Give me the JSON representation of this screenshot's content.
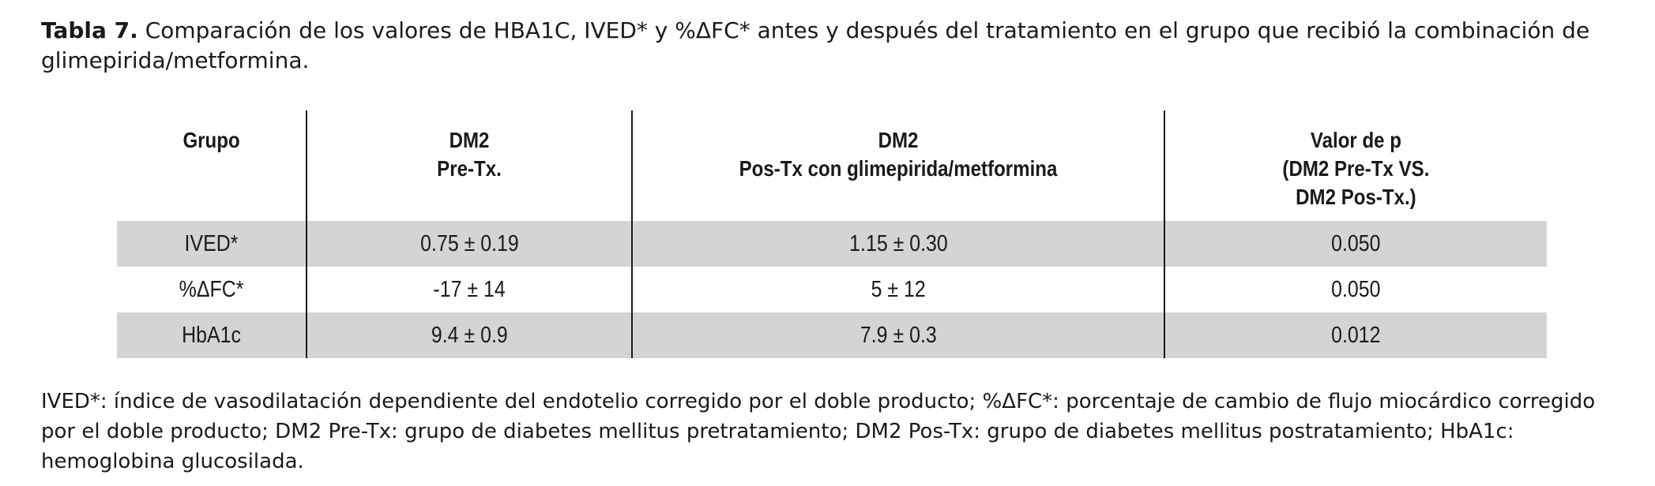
{
  "caption": {
    "label": "Tabla 7.",
    "text": " Comparación de los valores de HBA1C, IVED* y %ΔFC* antes y después del tratamiento en el grupo que recibió la combinación de glimepirida/metformina."
  },
  "table": {
    "headers": [
      [
        "Grupo"
      ],
      [
        "DM2",
        "Pre-Tx."
      ],
      [
        "DM2",
        "Pos-Tx con glimepirida/metformina"
      ],
      [
        "Valor de p",
        "(DM2 Pre-Tx VS.",
        "DM2 Pos-Tx.)"
      ]
    ],
    "rows": [
      [
        "IVED*",
        "0.75 ± 0.19",
        "1.15 ± 0.30",
        "0.050"
      ],
      [
        "%ΔFC*",
        "-17 ± 14",
        "5 ± 12",
        "0.050"
      ],
      [
        "HbA1c",
        "9.4 ± 0.9",
        "7.9 ± 0.3",
        "0.012"
      ]
    ]
  },
  "footnote": "IVED*: índice de vasodilatación dependiente del endotelio corregido por el doble producto; %ΔFC*: porcentaje de cambio de flujo miocárdico corregido por el doble producto; DM2 Pre-Tx: grupo de diabetes mellitus pretratamiento; DM2 Pos-Tx: grupo de diabetes mellitus postratamiento; HbA1c: hemoglobina glucosilada."
}
